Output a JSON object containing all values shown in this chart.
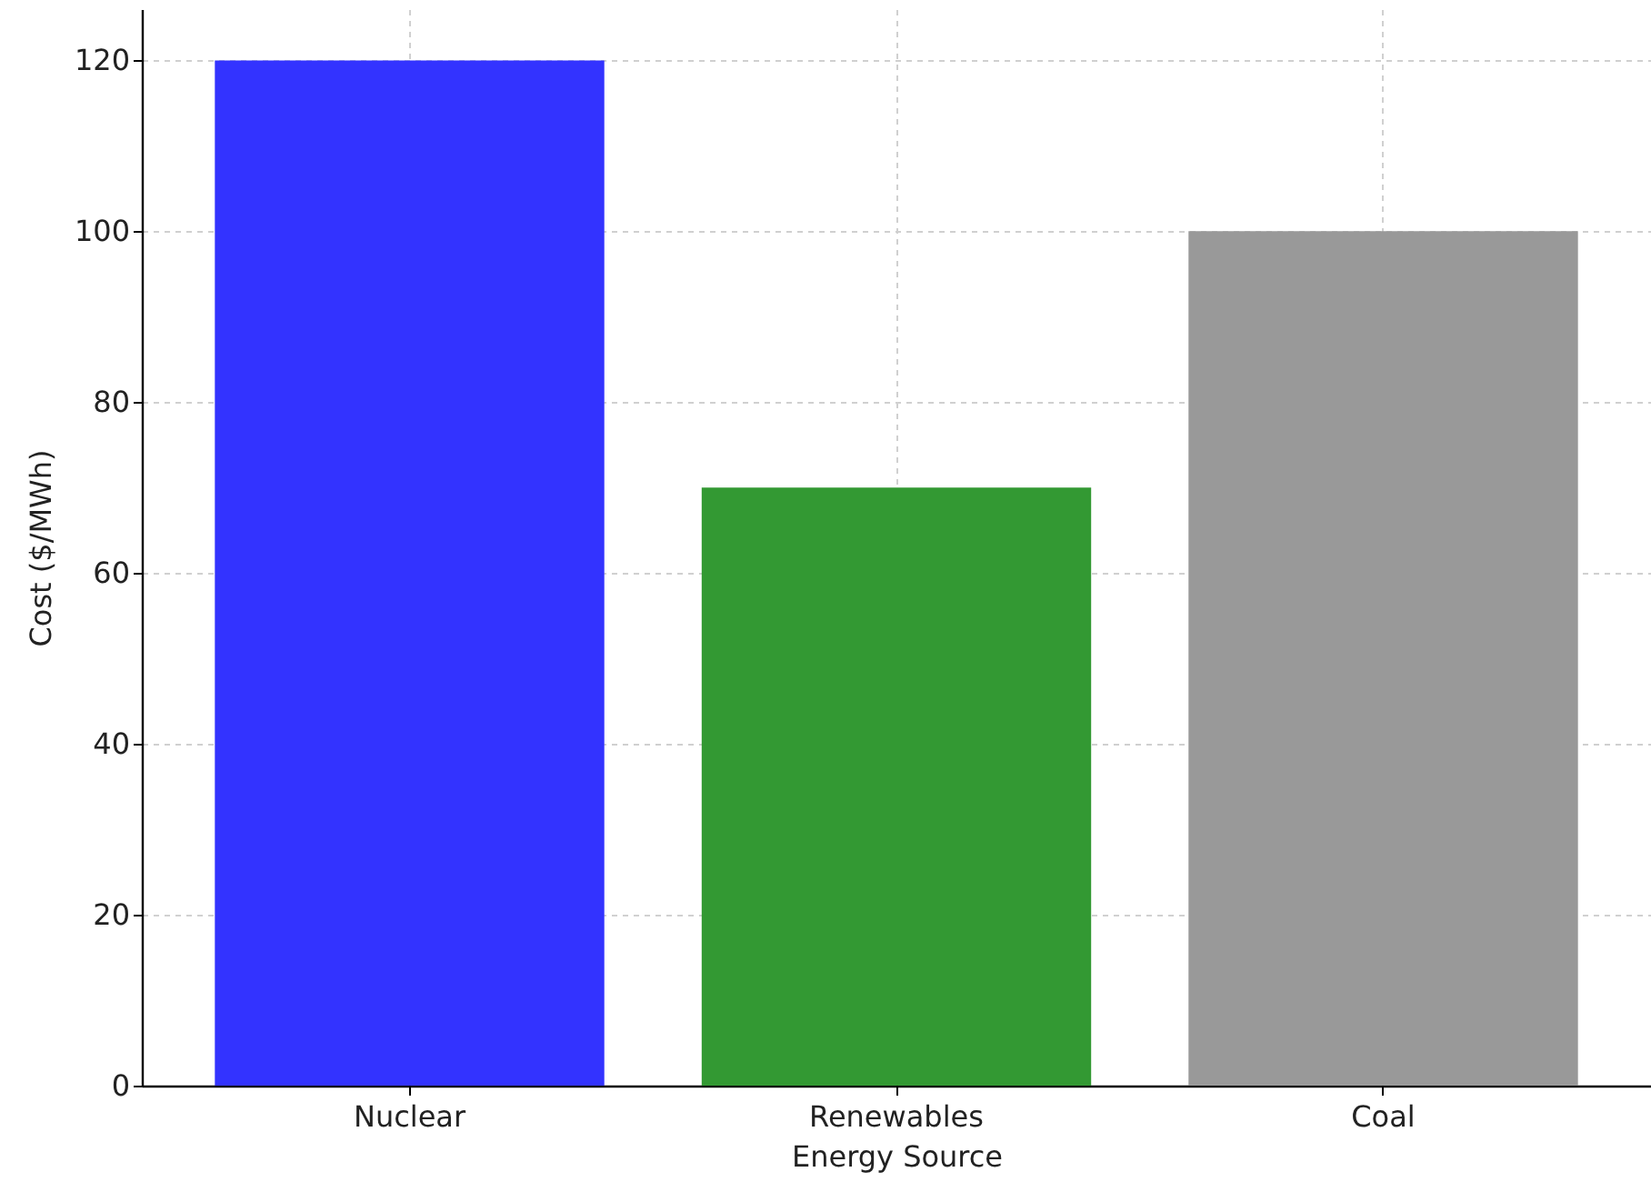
{
  "chart_data": {
    "type": "bar",
    "xlabel": "Energy Source",
    "ylabel": "Cost ($/MWh)",
    "categories": [
      "Nuclear",
      "Renewables",
      "Coal"
    ],
    "values": [
      120,
      70,
      100
    ],
    "colors": [
      "#3333ff",
      "#339933",
      "#999999"
    ],
    "ylim": [
      0,
      126
    ],
    "yticks": [
      0,
      20,
      40,
      60,
      80,
      100,
      120
    ],
    "grid": true
  }
}
